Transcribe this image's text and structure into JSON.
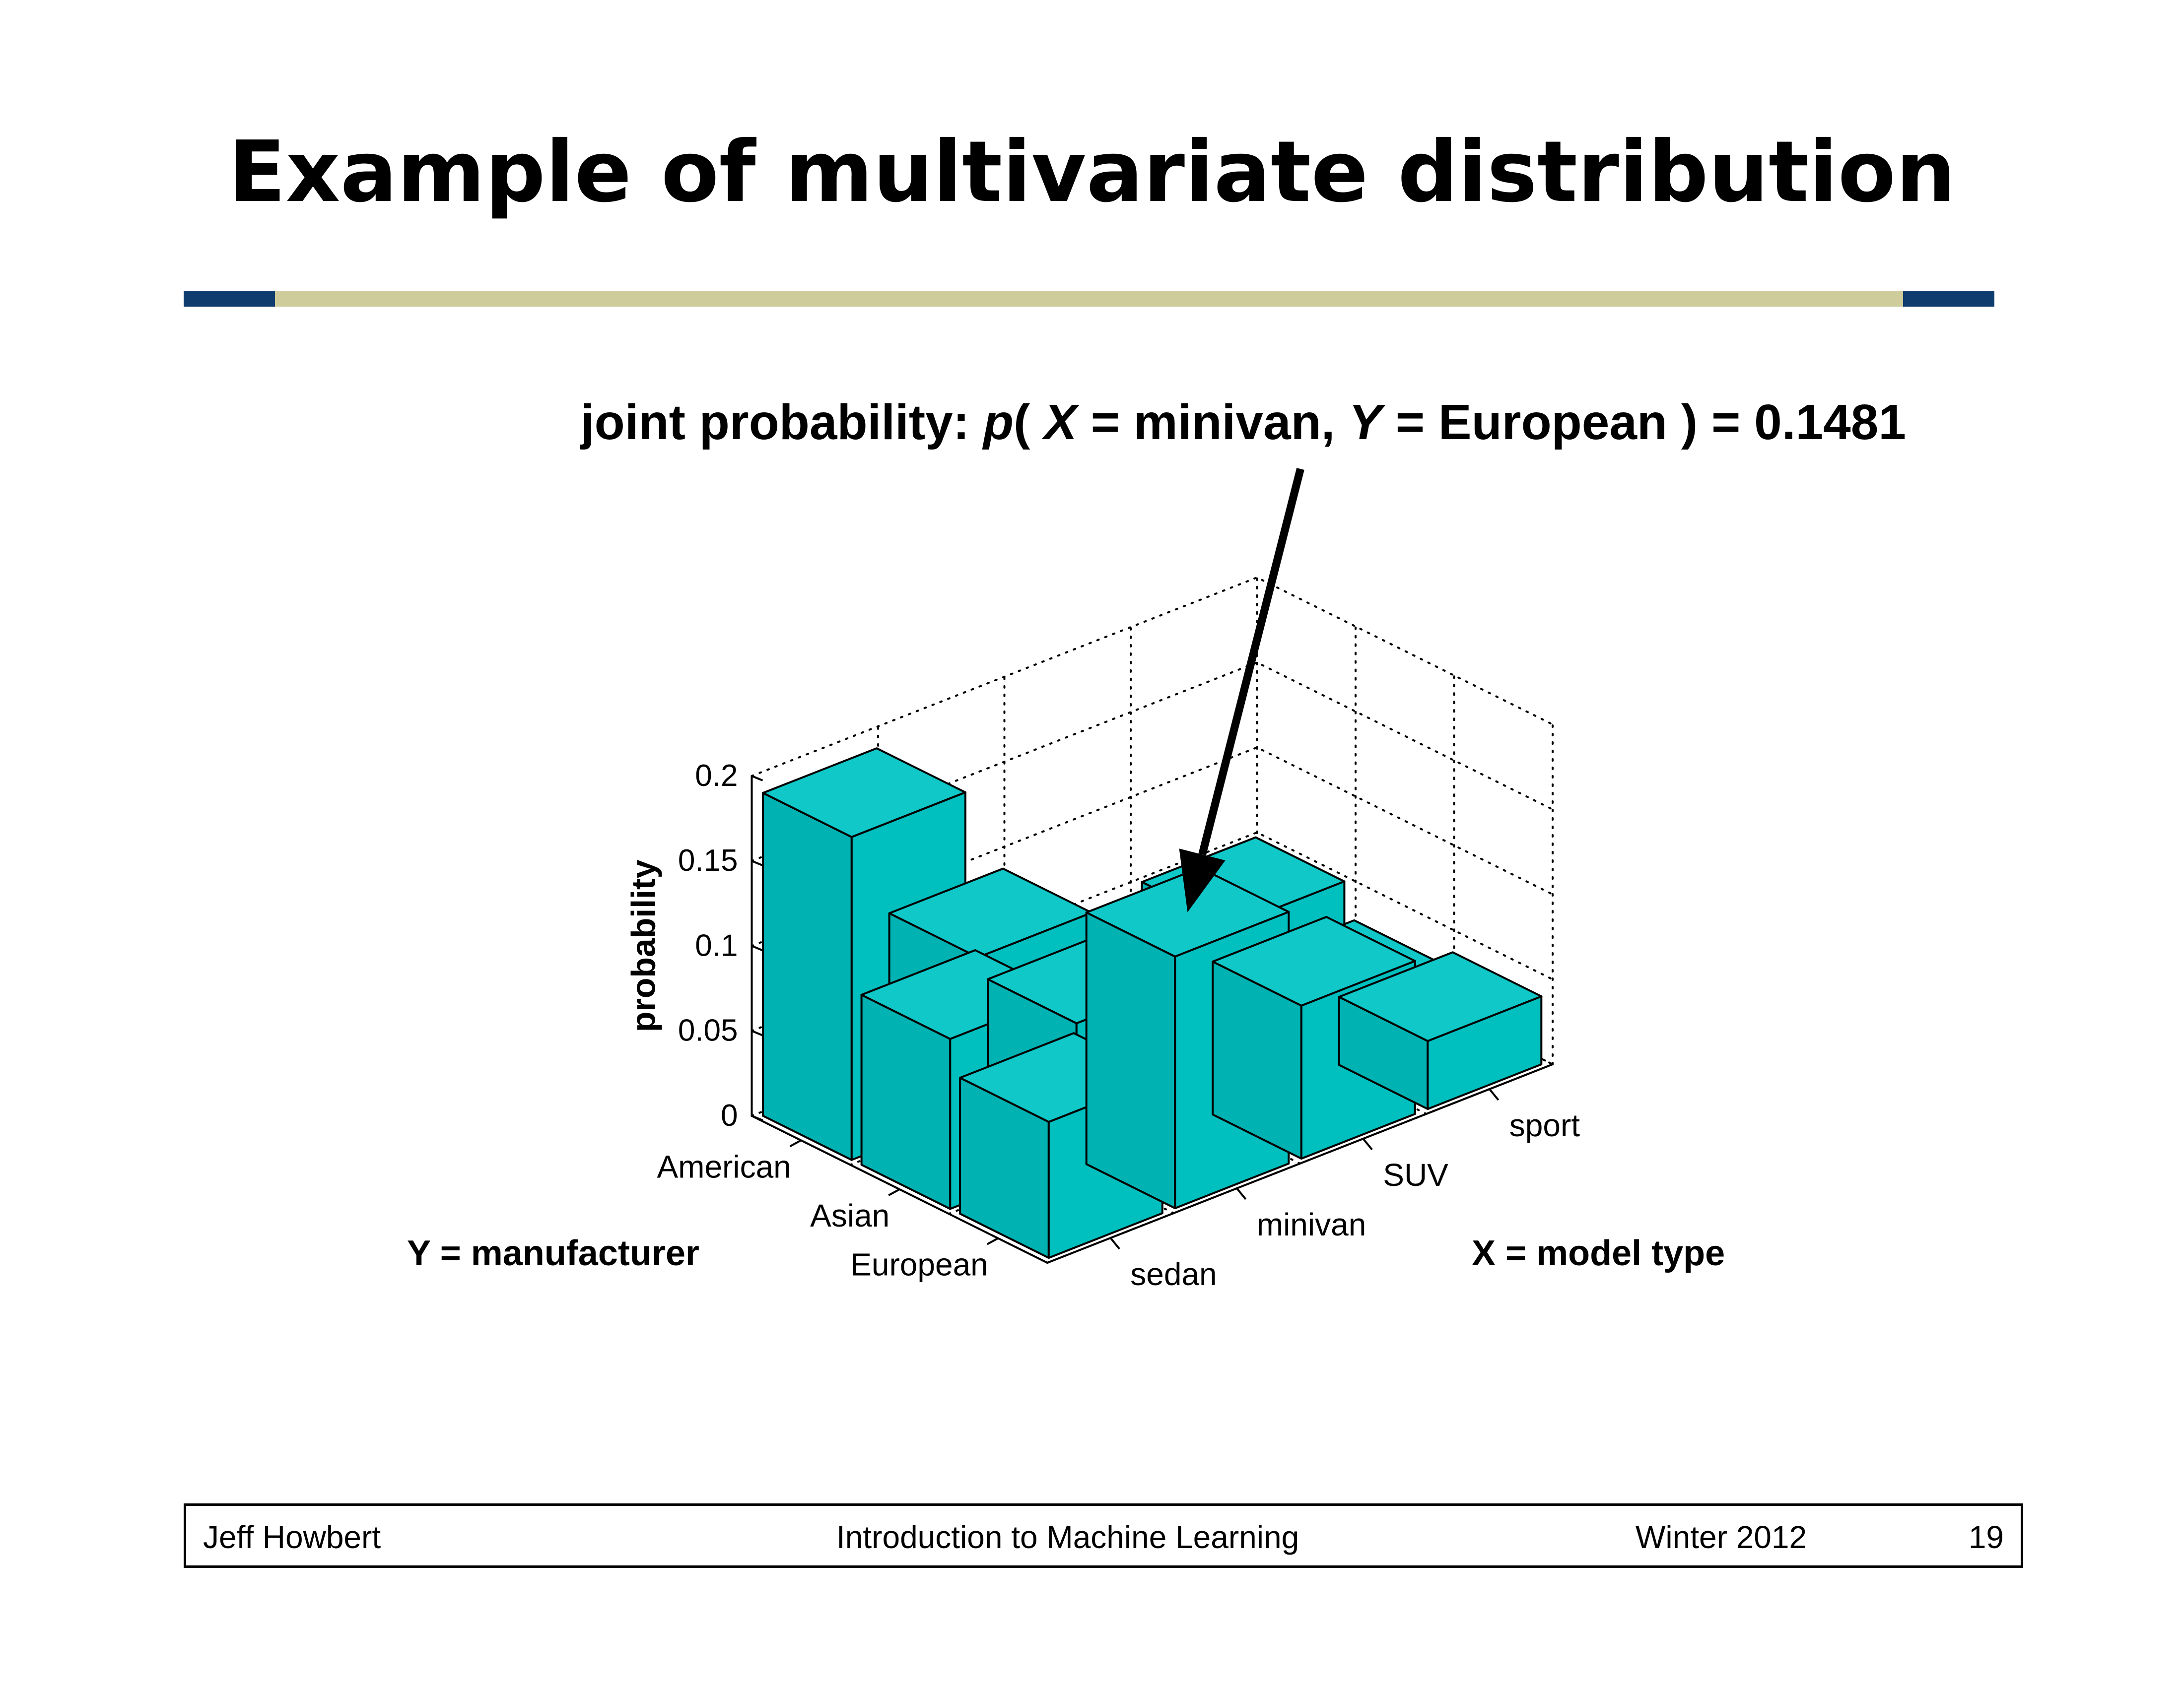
{
  "slide": {
    "title": "Example of multivariate distribution",
    "colors": {
      "rule_main": "#cfcc9b",
      "rule_caps": "#0e3c6e",
      "bar_face": "#00bfbf",
      "bar_top": "#10c8c8",
      "bar_side": "#00b2b2"
    }
  },
  "annotation": {
    "prefix": "joint probability: ",
    "p": "p",
    "open": "( ",
    "xvar": "X",
    "xeq": " = minivan, ",
    "yvar": "Y",
    "yeq": " = European ) = 0.1481"
  },
  "footer": {
    "author": "Jeff Howbert",
    "course": "Introduction to Machine Learning",
    "term": "Winter 2012",
    "page": "19"
  },
  "chart_data": {
    "type": "bar3d",
    "zlabel": "probability",
    "zticks": [
      "0",
      "0.05",
      "0.1",
      "0.15",
      "0.2"
    ],
    "zlim": [
      0,
      0.2
    ],
    "x_axis": {
      "title": "X = model type",
      "categories": [
        "sedan",
        "minivan",
        "SUV",
        "sport"
      ]
    },
    "y_axis": {
      "title": "Y = manufacturer",
      "categories": [
        "American",
        "Asian",
        "European"
      ]
    },
    "values": [
      {
        "x": "sedan",
        "y": "American",
        "p": 0.19
      },
      {
        "x": "minivan",
        "y": "American",
        "p": 0.09
      },
      {
        "x": "SUV",
        "y": "American",
        "p": 0.01
      },
      {
        "x": "sport",
        "y": "American",
        "p": 0.05
      },
      {
        "x": "sedan",
        "y": "Asian",
        "p": 0.1
      },
      {
        "x": "minivan",
        "y": "Asian",
        "p": 0.08
      },
      {
        "x": "SUV",
        "y": "Asian",
        "p": 0.05
      },
      {
        "x": "sport",
        "y": "Asian",
        "p": 0.03
      },
      {
        "x": "sedan",
        "y": "European",
        "p": 0.08
      },
      {
        "x": "minivan",
        "y": "European",
        "p": 0.1481
      },
      {
        "x": "SUV",
        "y": "European",
        "p": 0.09
      },
      {
        "x": "sport",
        "y": "European",
        "p": 0.04
      }
    ]
  }
}
